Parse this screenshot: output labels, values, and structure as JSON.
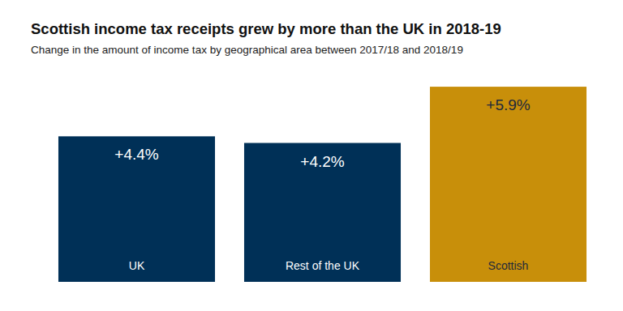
{
  "chart_data": {
    "type": "bar",
    "title": "Scottish income tax receipts grew by more than the UK in 2018-19",
    "subtitle": "Change in the amount of income tax by geographical area between 2017/18 and 2018/19",
    "categories": [
      "UK",
      "Rest of the UK",
      "Scottish"
    ],
    "values": [
      4.4,
      4.2,
      5.9
    ],
    "value_labels": [
      "+4.4%",
      "+4.2%",
      "+5.9%"
    ],
    "colors": [
      "#003057",
      "#003057",
      "#c88f0a"
    ],
    "ylim": [
      0,
      6
    ],
    "data_labels": true,
    "tick_labels": false,
    "grid": false
  }
}
